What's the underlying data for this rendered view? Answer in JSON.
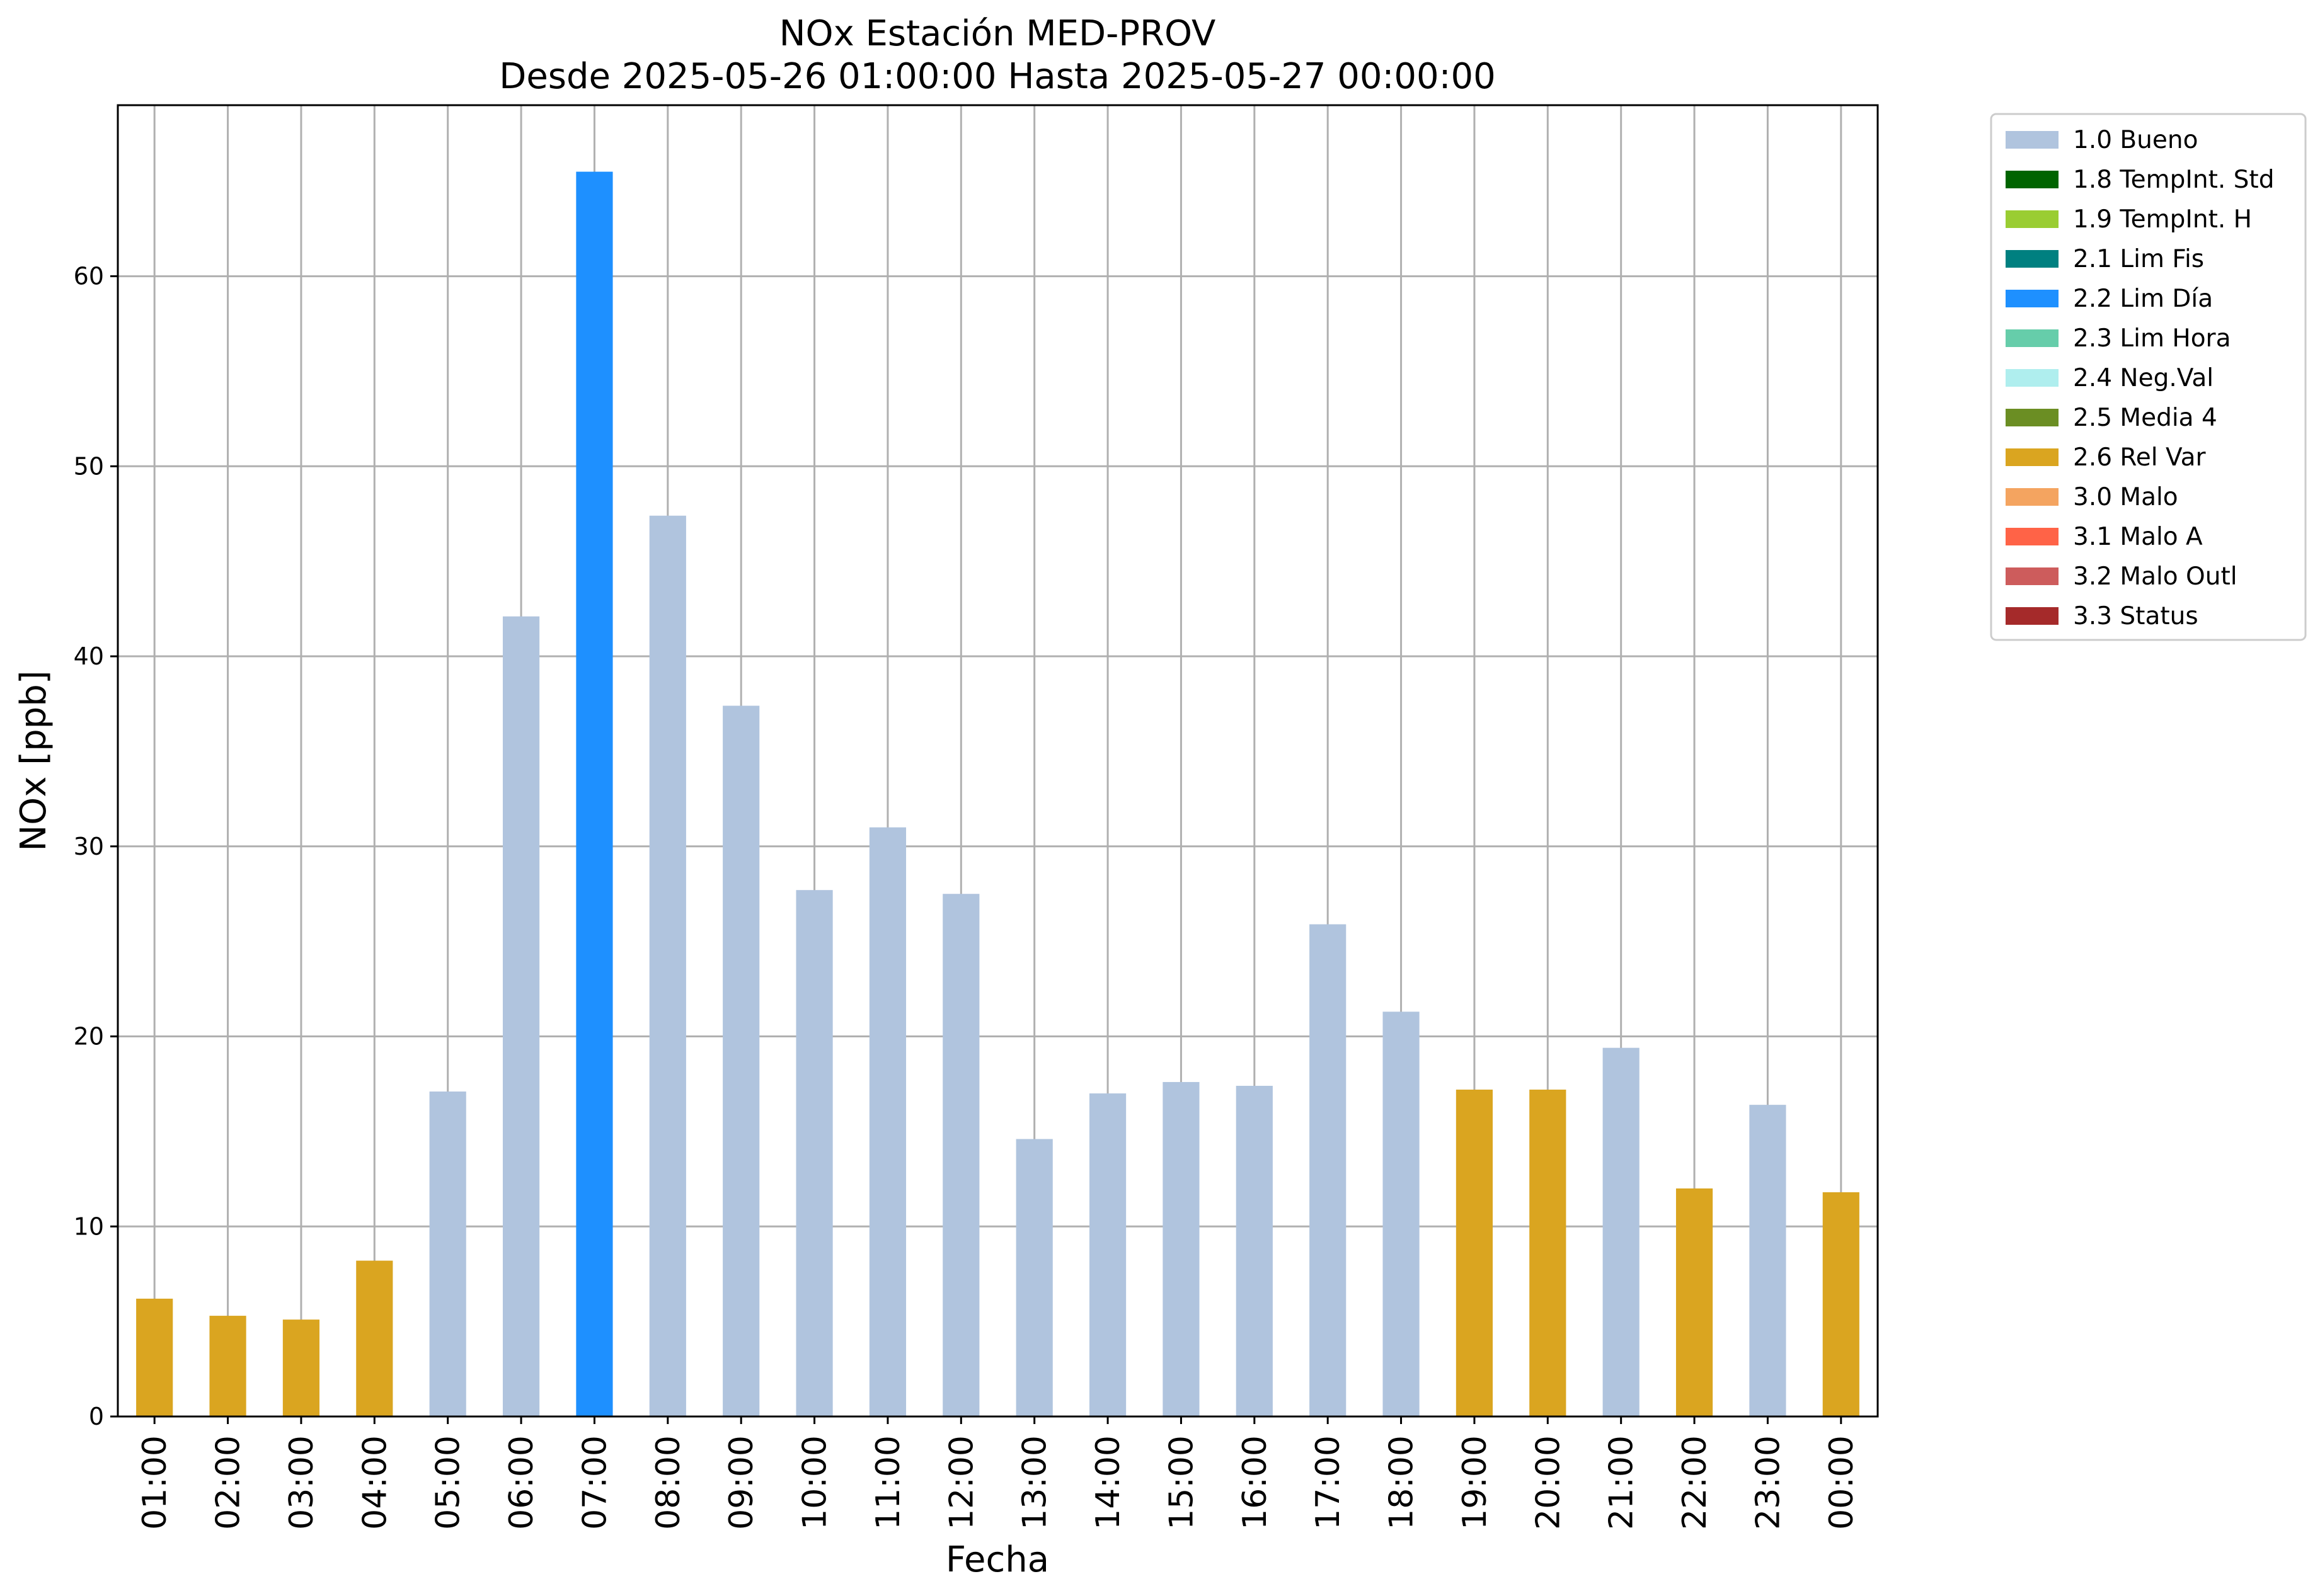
{
  "chart_data": {
    "type": "bar",
    "title": "NOx Estación MED-PROV",
    "subtitle": "Desde 2025-05-26 01:00:00 Hasta 2025-05-27 00:00:00",
    "xlabel": "Fecha",
    "ylabel": "NOx [ppb]",
    "ylim": [
      0,
      69
    ],
    "yticks": [
      0,
      10,
      20,
      30,
      40,
      50,
      60
    ],
    "grid": true,
    "legend_position": "outside-right-top",
    "categories": [
      "01:00",
      "02:00",
      "03:00",
      "04:00",
      "05:00",
      "06:00",
      "07:00",
      "08:00",
      "09:00",
      "10:00",
      "11:00",
      "12:00",
      "13:00",
      "14:00",
      "15:00",
      "16:00",
      "17:00",
      "18:00",
      "19:00",
      "20:00",
      "21:00",
      "22:00",
      "23:00",
      "00:00"
    ],
    "values": [
      6.2,
      5.3,
      5.1,
      8.2,
      17.1,
      42.1,
      65.5,
      47.4,
      37.4,
      27.7,
      31.0,
      27.5,
      14.6,
      17.0,
      17.6,
      17.4,
      25.9,
      21.3,
      17.2,
      17.2,
      19.4,
      12.0,
      16.4,
      11.8
    ],
    "flags": [
      "2.6",
      "2.6",
      "2.6",
      "2.6",
      "1.0",
      "1.0",
      "2.2",
      "1.0",
      "1.0",
      "1.0",
      "1.0",
      "1.0",
      "1.0",
      "1.0",
      "1.0",
      "1.0",
      "1.0",
      "1.0",
      "2.6",
      "2.6",
      "1.0",
      "2.6",
      "1.0",
      "2.6"
    ],
    "legend": [
      {
        "code": "1.0",
        "label": "1.0 Bueno",
        "color": "#b0c4de"
      },
      {
        "code": "1.8",
        "label": "1.8 TempInt. Std",
        "color": "#006400"
      },
      {
        "code": "1.9",
        "label": "1.9 TempInt. H",
        "color": "#9acd32"
      },
      {
        "code": "2.1",
        "label": "2.1 Lim Fis",
        "color": "#008080"
      },
      {
        "code": "2.2",
        "label": "2.2 Lim Día",
        "color": "#1e90ff"
      },
      {
        "code": "2.3",
        "label": "2.3 Lim Hora",
        "color": "#66cdaa"
      },
      {
        "code": "2.4",
        "label": "2.4 Neg.Val",
        "color": "#afeeee"
      },
      {
        "code": "2.5",
        "label": "2.5 Media 4",
        "color": "#6b8e23"
      },
      {
        "code": "2.6",
        "label": "2.6 Rel Var",
        "color": "#daa520"
      },
      {
        "code": "3.0",
        "label": "3.0 Malo",
        "color": "#f4a460"
      },
      {
        "code": "3.1",
        "label": "3.1 Malo A",
        "color": "#ff6347"
      },
      {
        "code": "3.2",
        "label": "3.2 Malo Outl",
        "color": "#cd5c5c"
      },
      {
        "code": "3.3",
        "label": "3.3 Status",
        "color": "#a52a2a"
      }
    ]
  }
}
